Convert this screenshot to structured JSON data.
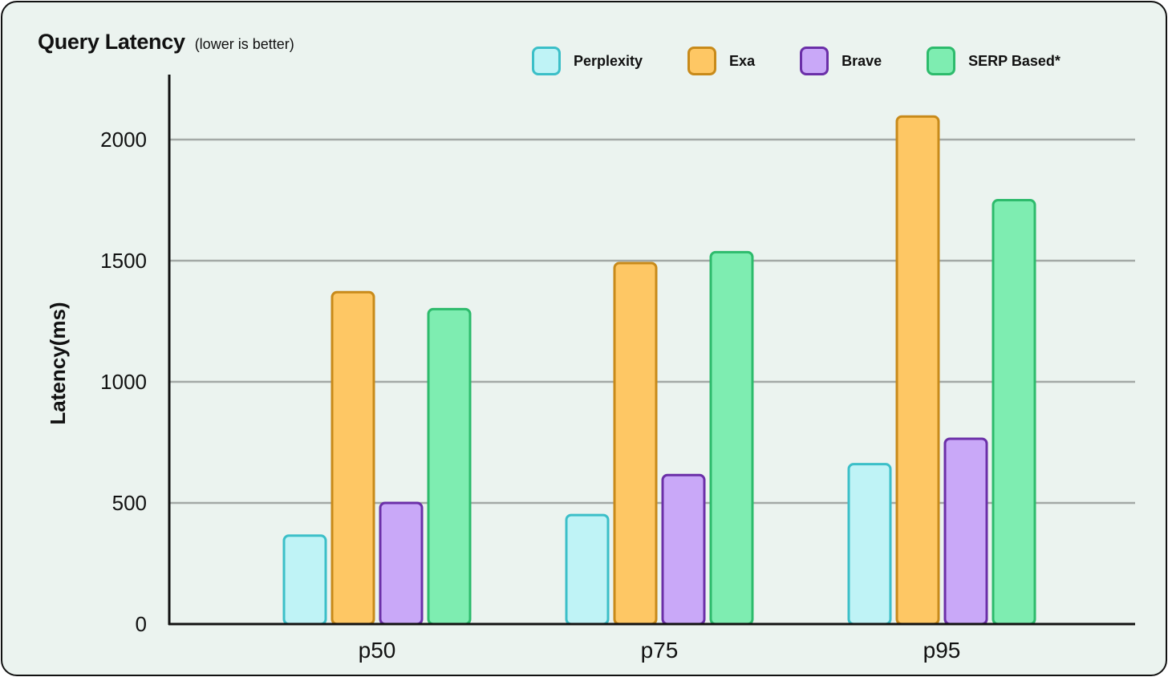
{
  "chart_data": {
    "type": "bar",
    "title": "Query Latency",
    "subtitle": "(lower is better)",
    "xlabel": "",
    "ylabel": "Latency(ms)",
    "ylim": [
      0,
      2250
    ],
    "yticks": [
      0,
      500,
      1000,
      1500,
      2000
    ],
    "grid": true,
    "legend_position": "top-right",
    "categories": [
      "p50",
      "p75",
      "p95"
    ],
    "series": [
      {
        "name": "Perplexity",
        "values": [
          365,
          450,
          660
        ],
        "fill": "#bff3f6",
        "stroke": "#3bbfc8"
      },
      {
        "name": "Exa",
        "values": [
          1370,
          1490,
          2095
        ],
        "fill": "#fec764",
        "stroke": "#c88a1a"
      },
      {
        "name": "Brave",
        "values": [
          500,
          615,
          765
        ],
        "fill": "#c9a8f8",
        "stroke": "#6b2fa8"
      },
      {
        "name": "SERP Based*",
        "values": [
          1300,
          1535,
          1750
        ],
        "fill": "#7eedb1",
        "stroke": "#2dbb6c"
      }
    ],
    "colors": {
      "background": "#ebf3ef",
      "gridline": "#a3a9a6",
      "axis": "#111111"
    }
  }
}
